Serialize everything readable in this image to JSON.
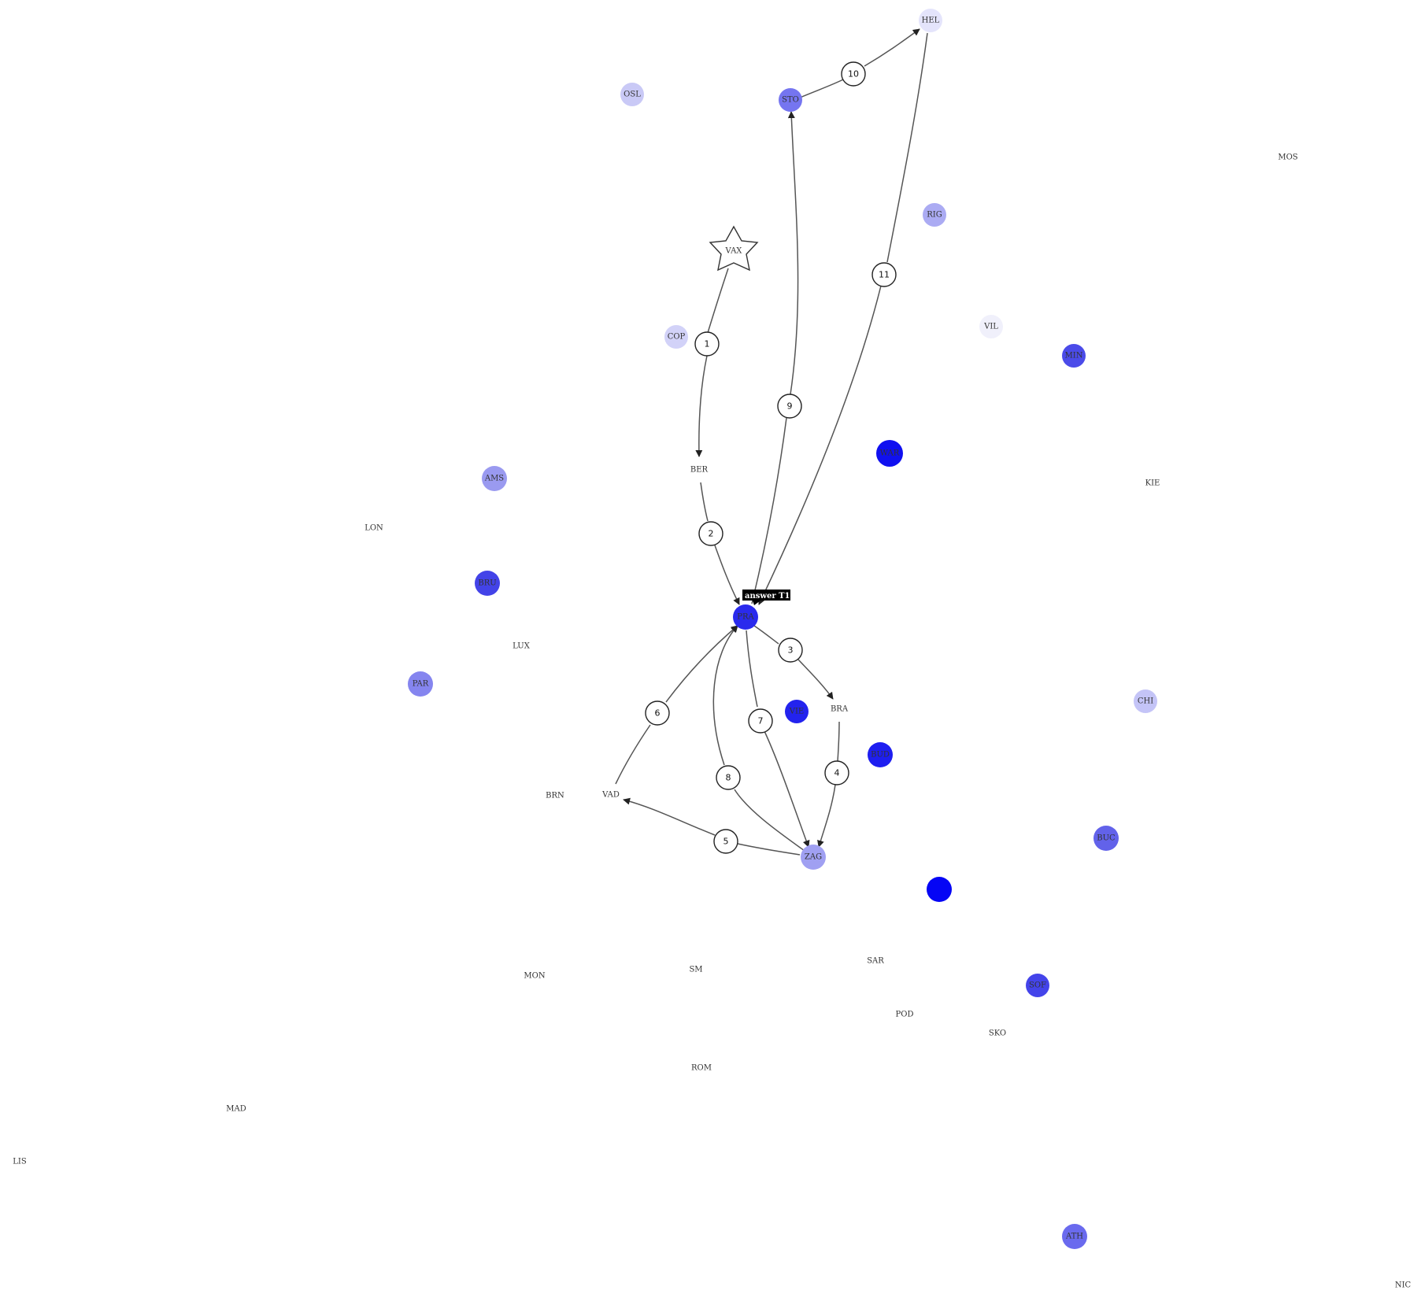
{
  "cities": [
    {
      "code": "HEL",
      "fill": "#e4e4fb"
    },
    {
      "code": "OSL",
      "fill": "#c9c9f6"
    },
    {
      "code": "STO",
      "fill": "#7575f0"
    },
    {
      "code": "MOS",
      "fill": null
    },
    {
      "code": "RIG",
      "fill": "#ababf3"
    },
    {
      "code": "VAX",
      "fill": null,
      "shape": "star"
    },
    {
      "code": "VIL",
      "fill": "#f0f0fb"
    },
    {
      "code": "COP",
      "fill": "#d2d2f8"
    },
    {
      "code": "MIN",
      "fill": "#4b4be9"
    },
    {
      "code": "WAR",
      "fill": "#1010f0"
    },
    {
      "code": "BER",
      "fill": null
    },
    {
      "code": "AMS",
      "fill": "#9a9af0"
    },
    {
      "code": "KIE",
      "fill": null
    },
    {
      "code": "LON",
      "fill": null
    },
    {
      "code": "BRU",
      "fill": "#4343e8"
    },
    {
      "code": "PRA",
      "fill": "#2a2aed"
    },
    {
      "code": "LUX",
      "fill": null
    },
    {
      "code": "PAR",
      "fill": "#8585ef"
    },
    {
      "code": "CHI",
      "fill": "#c4c4f7"
    },
    {
      "code": "VIE",
      "fill": "#2323ee"
    },
    {
      "code": "BRA",
      "fill": null
    },
    {
      "code": "BUD",
      "fill": "#1e1ef0"
    },
    {
      "code": "BRN",
      "fill": null
    },
    {
      "code": "VAD",
      "fill": null
    },
    {
      "code": "BUC",
      "fill": "#6262ea"
    },
    {
      "code": "ZAG",
      "fill": "#a0a0f2"
    },
    {
      "code": "",
      "fill": "#0505f5"
    },
    {
      "code": "SAR",
      "fill": null
    },
    {
      "code": "MON",
      "fill": null
    },
    {
      "code": "SM",
      "fill": null
    },
    {
      "code": "SOF",
      "fill": "#4444ea"
    },
    {
      "code": "POD",
      "fill": null
    },
    {
      "code": "SKO",
      "fill": null
    },
    {
      "code": "ROM",
      "fill": null
    },
    {
      "code": "MAD",
      "fill": null
    },
    {
      "code": "LIS",
      "fill": null
    },
    {
      "code": "ATH",
      "fill": "#6a6aee"
    },
    {
      "code": "NIC",
      "fill": null
    }
  ],
  "route": [
    {
      "step": "1",
      "from": "VAX",
      "to": "BER"
    },
    {
      "step": "2",
      "from": "BER",
      "to": "PRA"
    },
    {
      "step": "3",
      "from": "PRA",
      "to": "BRA"
    },
    {
      "step": "4",
      "from": "BRA",
      "to": "ZAG"
    },
    {
      "step": "5",
      "from": "ZAG",
      "to": "VAD"
    },
    {
      "step": "6",
      "from": "VAD",
      "to": "PRA"
    },
    {
      "step": "7",
      "from": "PRA",
      "to": "ZAG"
    },
    {
      "step": "8",
      "from": "ZAG",
      "to": "PRA"
    },
    {
      "step": "9",
      "from": "PRA",
      "to": "STO"
    },
    {
      "step": "10",
      "from": "STO",
      "to": "HEL"
    },
    {
      "step": "11",
      "from": "HEL",
      "to": "PRA"
    }
  ],
  "tag": {
    "text": "answer T1",
    "target": "PRA"
  },
  "colors": {
    "edge": "#555555",
    "node_stroke": "#222222",
    "tag_bg": "#000000"
  }
}
